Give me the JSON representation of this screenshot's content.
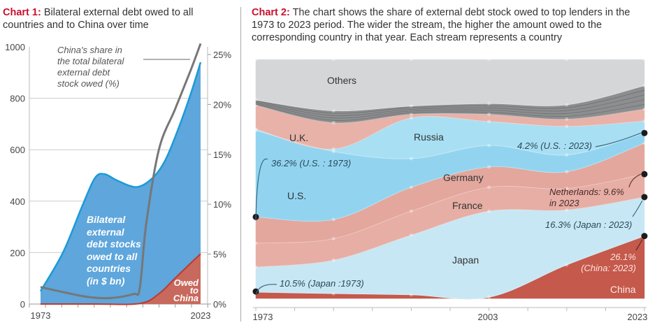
{
  "chart_data": [
    {
      "type": "area",
      "title_prefix": "Chart 1:",
      "title": "Bilateral external debt owed to all countries and to China over time",
      "x_tick_labels": [
        "1973",
        "2023"
      ],
      "xlim": [
        1973,
        2023
      ],
      "ylim": [
        0,
        1000
      ],
      "y_ticks": [
        "0",
        "200",
        "400",
        "600",
        "800",
        "1000"
      ],
      "y2lim": [
        0,
        25
      ],
      "y2_ticks": [
        "0%",
        "5%",
        "10%",
        "15%",
        "20%",
        "25%"
      ],
      "grid": true,
      "colors": {
        "total": "#5ea6dc",
        "total_line": "#1a9bd7",
        "china": "#c8695d",
        "china_line": "#c0392b",
        "share_line": "#777777"
      },
      "series": [
        {
          "name": "Bilateral\nexternal\ndebt stocks\nowed to all\ncountries\n(in $ bn)",
          "axis": "left",
          "x": [
            1973,
            1980,
            1986,
            1990,
            1993,
            1997,
            2003,
            2008,
            2012,
            2016,
            2020,
            2023
          ],
          "values": [
            50,
            200,
            380,
            490,
            505,
            480,
            455,
            490,
            560,
            680,
            820,
            940
          ]
        },
        {
          "name": "Owed\nto\nChina",
          "axis": "left",
          "x": [
            1973,
            1990,
            2004,
            2010,
            2015,
            2020,
            2023
          ],
          "values": [
            0,
            0,
            2,
            40,
            100,
            160,
            195
          ]
        },
        {
          "name": "China's share in\nthe total bilateral\nexternal debt\nstock owed (%)",
          "axis": "right",
          "x": [
            1973,
            1980,
            1988,
            1995,
            2002,
            2004,
            2006,
            2010,
            2015,
            2020,
            2023
          ],
          "values": [
            1.7,
            1.2,
            0.7,
            0.6,
            1.0,
            1.6,
            8.0,
            15.5,
            19.5,
            23.5,
            26.1
          ]
        }
      ]
    },
    {
      "type": "area",
      "subtype": "streamgraph",
      "title_prefix": "Chart 2:",
      "title": "The chart shows the share of external debt stock owed to top lenders in the 1973 to 2023 period. The wider the stream, the higher the amount owed to the corresponding country in that year. Each stream represents a country",
      "x": [
        1973,
        1983,
        1993,
        2003,
        2013,
        2023
      ],
      "x_tick_labels": [
        "1973",
        "2003",
        "2023"
      ],
      "ylim": [
        0,
        100
      ],
      "series": [
        {
          "name": "China",
          "color": "#c4594c",
          "values": [
            2.6,
            2,
            1.5,
            0.5,
            14,
            26.1
          ]
        },
        {
          "name": "Japan",
          "color": "#c8e7f4",
          "values": [
            10.5,
            14,
            25,
            36,
            23,
            16.3
          ]
        },
        {
          "name": "France",
          "color": "#e6aea5",
          "values": [
            10,
            9,
            10,
            10,
            9,
            9.6
          ]
        },
        {
          "name": "Germany",
          "color": "#e3a79d",
          "values": [
            11,
            8,
            10,
            8.5,
            7,
            13
          ]
        },
        {
          "name": "U.S.",
          "color": "#92d4f0",
          "values": [
            36.2,
            28.5,
            12,
            9,
            7,
            4.2
          ]
        },
        {
          "name": "Russia",
          "color": "#a9dff3",
          "values": [
            0.5,
            1,
            17,
            10,
            12,
            5
          ]
        },
        {
          "name": "U.K.",
          "color": "#e8b2a8",
          "values": [
            10,
            11,
            1.5,
            3,
            3,
            5
          ]
        },
        {
          "name": "",
          "color": "#8c8e90",
          "values": [
            2.2,
            5,
            3.5,
            4.5,
            6,
            9.8
          ]
        },
        {
          "name": "Others",
          "color": "#d5d6d8",
          "values": [
            17,
            21.5,
            19.5,
            18.5,
            19,
            11
          ]
        }
      ],
      "annotations": [
        "36.2% (U.S. : 1973)",
        "10.5% (Japan :1973)",
        "4.2% (U.S. : 2023)",
        "Netherlands: 9.6%\nin 2023",
        "16.3% (Japan : 2023)",
        "26.1%\n(China: 2023)"
      ]
    }
  ]
}
